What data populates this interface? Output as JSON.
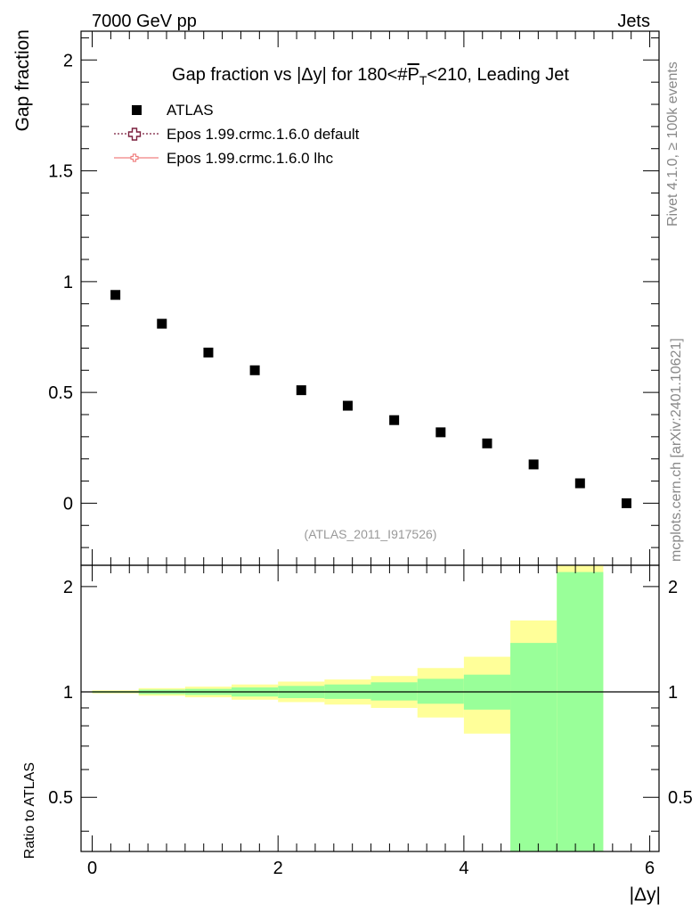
{
  "header": {
    "left_label": "7000 GeV pp",
    "right_label": "Jets"
  },
  "side_labels": {
    "rivet": "Rivet 4.1.0, ≥ 100k events",
    "mcplots": "mcplots.cern.ch [arXiv:2401.10621]"
  },
  "watermark": "(ATLAS_2011_I917526)",
  "chart_data": {
    "type": "scatter",
    "title": "Gap fraction vs |Δy| for 180<#P̅T<210, Leading Jet",
    "title_parts": {
      "prefix": "Gap fraction vs |Δy| for 180<#",
      "p": "P",
      "sub": "T",
      "suffix": "<210, Leading Jet"
    },
    "xlabel": "|Δy|",
    "ylabel": "Gap fraction",
    "ratio_ylabel": "Ratio to ATLAS",
    "xlim": [
      -0.12,
      6.1
    ],
    "ylim": [
      -0.28,
      2.13
    ],
    "ratio_ylim": [
      0.35,
      2.3
    ],
    "x_ticks": [
      0,
      2,
      4,
      6
    ],
    "y_ticks": [
      0,
      0.5,
      1,
      1.5,
      2
    ],
    "ratio_ticks": [
      0.5,
      1,
      2
    ],
    "legend": [
      {
        "name": "ATLAS",
        "style": "marker-square",
        "color": "#000000"
      },
      {
        "name": "Epos 1.99.crmc.1.6.0 default",
        "style": "dotted-cross",
        "color": "#7a1f3d"
      },
      {
        "name": "Epos 1.99.crmc.1.6.0 lhc",
        "style": "solid-cross",
        "color": "#f08080"
      }
    ],
    "series": [
      {
        "name": "ATLAS",
        "x": [
          0.25,
          0.75,
          1.25,
          1.75,
          2.25,
          2.75,
          3.25,
          3.75,
          4.25,
          4.75,
          5.25,
          5.75
        ],
        "values": [
          0.94,
          0.81,
          0.68,
          0.6,
          0.51,
          0.44,
          0.375,
          0.32,
          0.27,
          0.175,
          0.09,
          0.0
        ]
      }
    ],
    "ratio_bands": {
      "bins": [
        [
          0,
          0.5
        ],
        [
          0.5,
          1.0
        ],
        [
          1.0,
          1.5
        ],
        [
          1.5,
          2.0
        ],
        [
          2.0,
          2.5
        ],
        [
          2.5,
          3.0
        ],
        [
          3.0,
          3.5
        ],
        [
          3.5,
          4.0
        ],
        [
          4.0,
          4.5
        ],
        [
          4.5,
          5.0
        ],
        [
          5.0,
          5.5
        ]
      ],
      "green_low": [
        0.995,
        0.985,
        0.98,
        0.97,
        0.96,
        0.955,
        0.945,
        0.925,
        0.89,
        0.35,
        0.35
      ],
      "green_high": [
        1.005,
        1.015,
        1.02,
        1.03,
        1.04,
        1.05,
        1.065,
        1.09,
        1.12,
        1.38,
        2.2
      ],
      "yellow_low": [
        0.99,
        0.975,
        0.965,
        0.95,
        0.935,
        0.92,
        0.9,
        0.845,
        0.76,
        0.72,
        0.35
      ],
      "yellow_high": [
        1.01,
        1.025,
        1.035,
        1.05,
        1.07,
        1.085,
        1.11,
        1.17,
        1.26,
        1.6,
        2.3
      ],
      "green_color": "#99ff99",
      "yellow_color": "#ffff99"
    }
  }
}
